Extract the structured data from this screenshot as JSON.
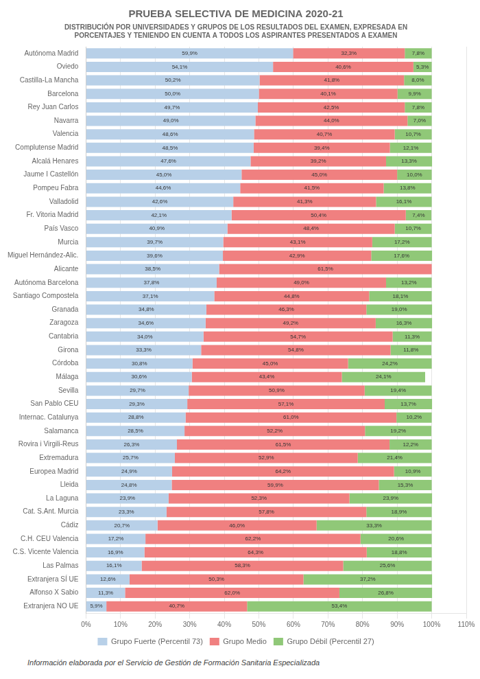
{
  "chart_data": {
    "type": "bar",
    "orientation": "horizontal",
    "stacked": true,
    "title": "PRUEBA SELECTIVA DE MEDICINA 2020-21",
    "subtitle": "DISTRIBUCIÓN POR UNIVERSIDADES Y GRUPOS DE LOS RESULTADOS DEL EXAMEN, EXPRESADA EN\nPORCENTAJES Y TENIENDO EN CUENTA A TODOS LOS ASPIRANTES PRESENTADOS A EXAMEN",
    "footer": "Información elaborada por el Servicio de Gestión de Formación Sanitaria Especializada",
    "categories": [
      "Autónoma Madrid",
      "Oviedo",
      "Castilla-La Mancha",
      "Barcelona",
      "Rey Juan Carlos",
      "Navarra",
      "Valencia",
      "Complutense Madrid",
      "Alcalá Henares",
      "Jaume I Castellón",
      "Pompeu Fabra",
      "Valladolid",
      "Fr. Vitoria Madrid",
      "País Vasco",
      "Murcia",
      "Miguel Hernández-Alic.",
      "Alicante",
      "Autónoma Barcelona",
      "Santiago Compostela",
      "Granada",
      "Zaragoza",
      "Cantabria",
      "Girona",
      "Córdoba",
      "Málaga",
      "Sevilla",
      "San Pablo CEU",
      "Internac. Catalunya",
      "Salamanca",
      "Rovira i Virgili-Reus",
      "Extremadura",
      "Europea Madrid",
      "Lleida",
      "La Laguna",
      "Cat. S.Ant. Murcia",
      "Cádiz",
      "C.H. CEU Valencia",
      "C.S. Vicente Valencia",
      "Las Palmas",
      "Extranjera SÍ UE",
      "Alfonso X Sabio",
      "Extranjera NO UE"
    ],
    "series": [
      {
        "name": "Grupo Fuerte (Percentil 73)",
        "color": "#b8d0e8",
        "values": [
          59.9,
          54.1,
          50.2,
          50.0,
          49.7,
          49.0,
          48.6,
          48.5,
          47.6,
          45.0,
          44.6,
          42.6,
          42.1,
          40.9,
          39.7,
          39.6,
          38.5,
          37.8,
          37.1,
          34.8,
          34.6,
          34.0,
          33.3,
          30.8,
          30.6,
          29.7,
          29.3,
          28.8,
          28.5,
          26.3,
          25.7,
          24.9,
          24.8,
          23.9,
          23.3,
          20.7,
          17.2,
          16.9,
          16.1,
          12.6,
          11.3,
          5.9
        ],
        "value_labels": [
          "59,9%",
          "54,1%",
          "50,2%",
          "50,0%",
          "49,7%",
          "49,0%",
          "48,6%",
          "48,5%",
          "47,6%",
          "45,0%",
          "44,6%",
          "42,6%",
          "42,1%",
          "40,9%",
          "39,7%",
          "39,6%",
          "38,5%",
          "37,8%",
          "37,1%",
          "34,8%",
          "34,6%",
          "34,0%",
          "33,3%",
          "30,8%",
          "30,6%",
          "29,7%",
          "29,3%",
          "28,8%",
          "28,5%",
          "26,3%",
          "25,7%",
          "24,9%",
          "24,8%",
          "23,9%",
          "23,3%",
          "20,7%",
          "17,2%",
          "16,9%",
          "16,1%",
          "12,6%",
          "11,3%",
          "5,9%"
        ]
      },
      {
        "name": "Grupo Medio",
        "color": "#f08080",
        "values": [
          32.3,
          40.6,
          41.8,
          40.1,
          42.5,
          44.0,
          40.7,
          39.4,
          39.2,
          45.0,
          41.5,
          41.3,
          50.4,
          48.4,
          43.1,
          42.9,
          61.5,
          49.0,
          44.8,
          46.3,
          49.2,
          54.7,
          54.8,
          45.0,
          43.4,
          50.9,
          57.1,
          61.0,
          52.2,
          61.5,
          52.9,
          64.2,
          59.9,
          52.3,
          57.8,
          46.0,
          62.2,
          64.3,
          58.3,
          50.3,
          62.0,
          40.7
        ],
        "value_labels": [
          "32,3%",
          "40,6%",
          "41,8%",
          "40,1%",
          "42,5%",
          "44,0%",
          "40,7%",
          "39,4%",
          "39,2%",
          "45,0%",
          "41,5%",
          "41,3%",
          "50,4%",
          "48,4%",
          "43,1%",
          "42,9%",
          "61,5%",
          "49,0%",
          "44,8%",
          "46,3%",
          "49,2%",
          "54,7%",
          "54,8%",
          "45,0%",
          "43,4%",
          "50,9%",
          "57,1%",
          "61,0%",
          "52,2%",
          "61,5%",
          "52,9%",
          "64,2%",
          "59,9%",
          "52,3%",
          "57,8%",
          "46,0%",
          "62,2%",
          "64,3%",
          "58,3%",
          "50,3%",
          "62,0%",
          "40,7%"
        ]
      },
      {
        "name": "Grupo Débil (Percentil 27)",
        "color": "#90c878",
        "values": [
          7.8,
          5.3,
          8.0,
          9.9,
          7.8,
          7.0,
          10.7,
          12.1,
          13.3,
          10.0,
          13.8,
          16.1,
          7.4,
          10.7,
          17.2,
          17.6,
          0.0,
          13.2,
          18.1,
          19.0,
          16.3,
          11.3,
          11.8,
          24.2,
          24.1,
          19.4,
          13.7,
          10.2,
          19.2,
          12.2,
          21.4,
          10.9,
          15.3,
          23.9,
          18.9,
          33.3,
          20.6,
          18.8,
          25.6,
          37.2,
          26.8,
          53.4
        ],
        "value_labels": [
          "7,8%",
          "5,3%",
          "8,0%",
          "9,9%",
          "7,8%",
          "7,0%",
          "10,7%",
          "12,1%",
          "13,3%",
          "10,0%",
          "13,8%",
          "16,1%",
          "7,4%",
          "10,7%",
          "17,2%",
          "17,6%",
          null,
          "13,2%",
          "18,1%",
          "19,0%",
          "16,3%",
          "11,3%",
          "11,8%",
          "24,2%",
          "24,1%",
          "19,4%",
          "13,7%",
          "10,2%",
          "19,2%",
          "12,2%",
          "21,4%",
          "10,9%",
          "15,3%",
          "23,9%",
          "18,9%",
          "33,3%",
          "20,6%",
          "18,8%",
          "25,6%",
          "37,2%",
          "26,8%",
          "53,4%"
        ]
      }
    ],
    "xlim": [
      0,
      110
    ],
    "xticks": [
      {
        "value": 0,
        "label": "0%"
      },
      {
        "value": 10,
        "label": "10%"
      },
      {
        "value": 20,
        "label": "20%"
      },
      {
        "value": 30,
        "label": "30%"
      },
      {
        "value": 40,
        "label": "40%"
      },
      {
        "value": 50,
        "label": "50%"
      },
      {
        "value": 60,
        "label": "60%"
      },
      {
        "value": 70,
        "label": "70%"
      },
      {
        "value": 80,
        "label": "80%"
      },
      {
        "value": 90,
        "label": "90%"
      },
      {
        "value": 100,
        "label": "100%"
      },
      {
        "value": 110,
        "label": "110%"
      }
    ],
    "grid": true,
    "legend": "bottom",
    "data_labels": true
  }
}
